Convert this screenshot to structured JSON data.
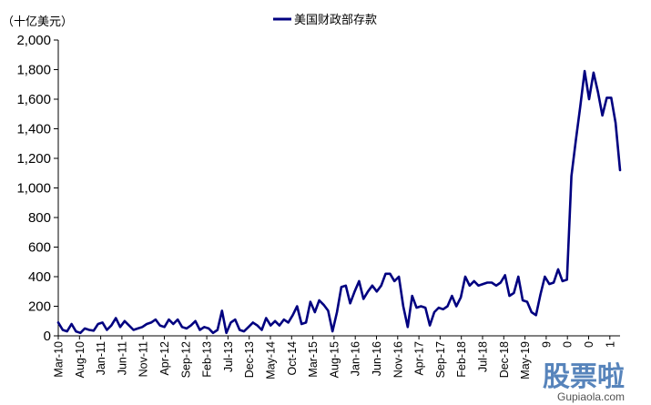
{
  "chart_data": {
    "type": "line",
    "unit_label": "（十亿美元）",
    "ylim": [
      0,
      2000
    ],
    "yticks": [
      "0",
      "200",
      "400",
      "600",
      "800",
      "1,000",
      "1,200",
      "1,400",
      "1,600",
      "1,800",
      "2,000"
    ],
    "ytick_values": [
      0,
      200,
      400,
      600,
      800,
      1000,
      1200,
      1400,
      1600,
      1800,
      2000
    ],
    "xticks": [
      "Mar-10",
      "Aug-10",
      "Jan-11",
      "Jun-11",
      "Nov-11",
      "Apr-12",
      "Sep-12",
      "Feb-13",
      "Jul-13",
      "Dec-13",
      "May-14",
      "Oct-14",
      "Mar-15",
      "Aug-15",
      "Jan-16",
      "Jun-16",
      "Nov-16",
      "Apr-17",
      "Sep-17",
      "Feb-18",
      "Jul-18",
      "Dec-18",
      "May-19",
      "9",
      "0",
      "0",
      "1"
    ],
    "legend_position": "top-center",
    "grid": false,
    "series": [
      {
        "name": "美国财政部存款",
        "color": "#000080",
        "values": [
          90,
          40,
          30,
          80,
          30,
          20,
          50,
          40,
          35,
          80,
          90,
          40,
          70,
          120,
          60,
          100,
          70,
          40,
          50,
          60,
          80,
          90,
          110,
          70,
          60,
          110,
          80,
          110,
          60,
          50,
          70,
          100,
          40,
          60,
          50,
          20,
          40,
          170,
          20,
          90,
          110,
          40,
          30,
          60,
          90,
          70,
          40,
          120,
          70,
          100,
          70,
          110,
          90,
          140,
          200,
          80,
          90,
          230,
          160,
          240,
          210,
          170,
          30,
          160,
          330,
          340,
          220,
          300,
          370,
          250,
          300,
          340,
          300,
          340,
          420,
          420,
          370,
          400,
          200,
          60,
          270,
          190,
          200,
          190,
          70,
          160,
          190,
          180,
          200,
          270,
          200,
          260,
          400,
          340,
          370,
          340,
          350,
          360,
          360,
          340,
          360,
          410,
          270,
          290,
          400,
          240,
          230,
          160,
          140,
          280,
          400,
          350,
          360,
          450,
          370,
          380,
          1080,
          1320,
          1550,
          1790,
          1600,
          1780,
          1650,
          1490,
          1610,
          1610,
          1440,
          1120
        ]
      }
    ]
  },
  "watermark": {
    "text": "股票啦",
    "url_text": "Gupiaola.com"
  }
}
